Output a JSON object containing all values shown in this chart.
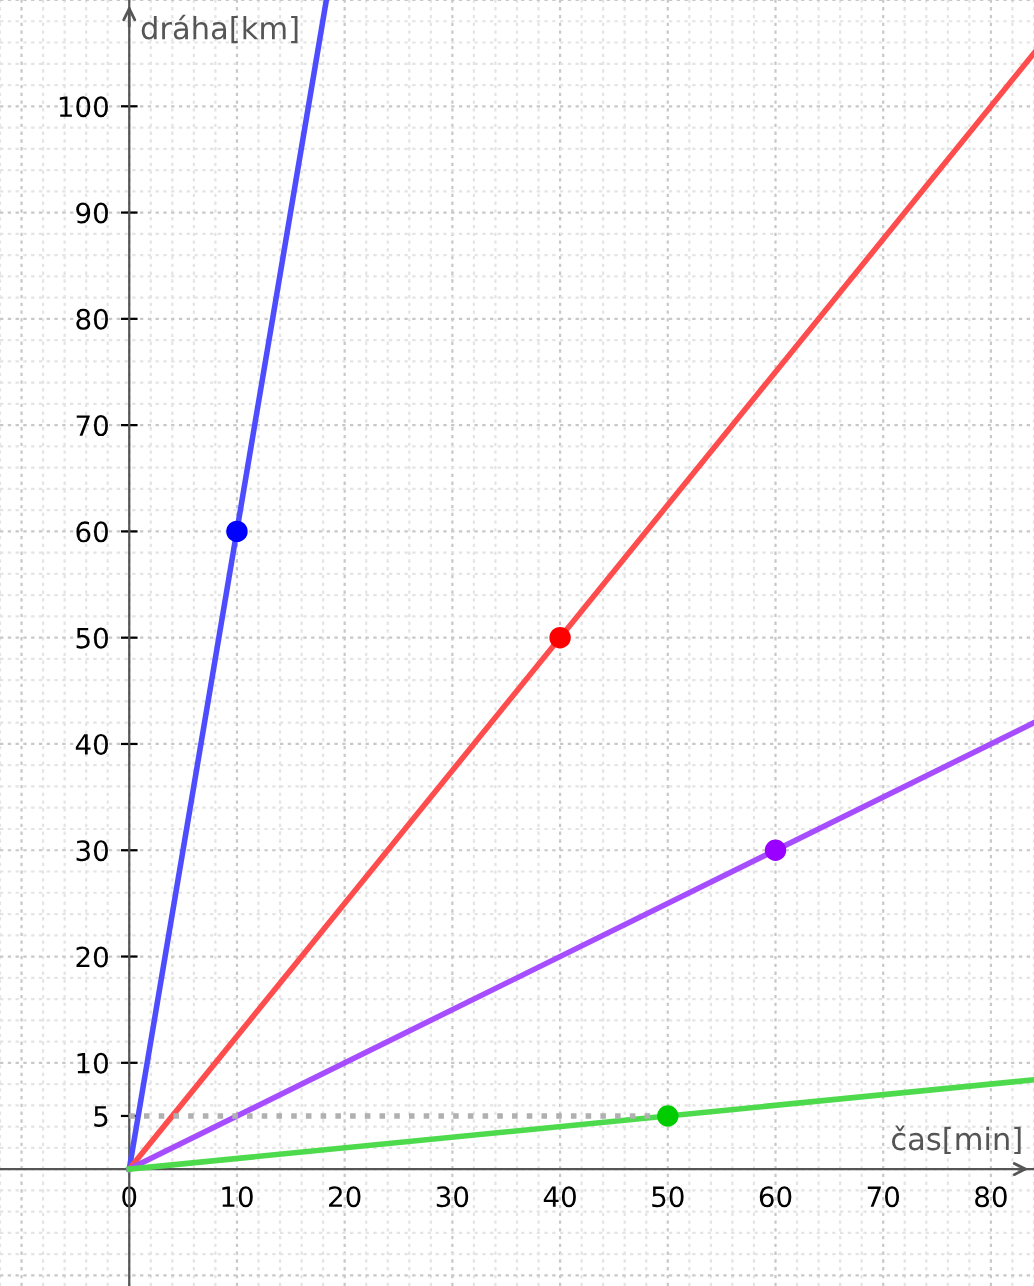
{
  "chart_data": {
    "type": "line",
    "xlabel": "čas[min]",
    "ylabel": "dráha[km]",
    "xlim": [
      -12,
      84
    ],
    "ylim": [
      -11,
      110
    ],
    "xticks": [
      0,
      10,
      20,
      30,
      40,
      50,
      60,
      70,
      80
    ],
    "yticks": [
      5,
      10,
      20,
      30,
      40,
      50,
      60,
      70,
      80,
      90,
      100
    ],
    "grid": true,
    "marker": "none",
    "line_style": "solid",
    "series": [
      {
        "color": "#4d4dff",
        "x": [
          0,
          18.3
        ],
        "values": [
          0,
          110
        ]
      },
      {
        "color": "#ff4d4d",
        "x": [
          0,
          84
        ],
        "values": [
          0,
          105
        ]
      },
      {
        "color": "#a64dff",
        "x": [
          0,
          84
        ],
        "values": [
          0,
          42
        ]
      },
      {
        "color": "#4ddb4d",
        "x": [
          0,
          84
        ],
        "values": [
          0,
          8.4
        ]
      },
      {
        "color": "#b0b0b0",
        "line_style": "dotted",
        "x": [
          0,
          50
        ],
        "values": [
          5,
          5
        ]
      },
      {
        "type": "scatter",
        "marker": "circle",
        "x": [
          10,
          40,
          60,
          50
        ],
        "values": [
          60,
          50,
          30,
          5
        ],
        "colors": [
          "#0000ff",
          "#ff0000",
          "#9900ff",
          "#00cc00"
        ]
      }
    ]
  }
}
